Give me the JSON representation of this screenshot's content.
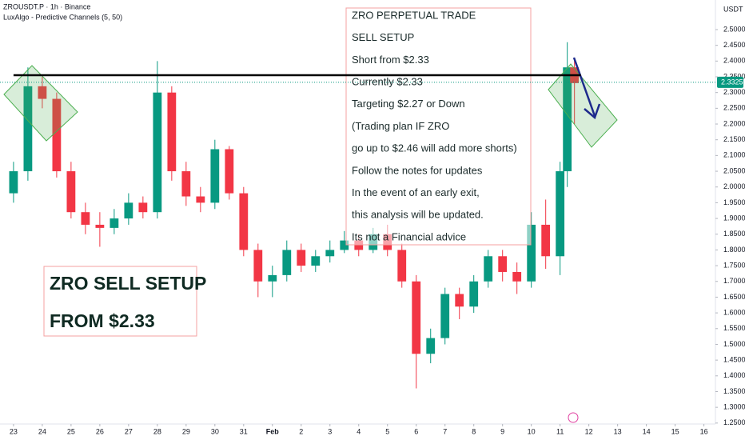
{
  "chart_data": {
    "type": "candlestick",
    "symbol": "ZROUSDT.P · 1h · Binance",
    "indicator": "LuxAlgo - Predictive Channels (5, 50)",
    "currency": "USDT",
    "x": [
      0,
      0.5,
      1,
      1.5,
      2,
      2.5,
      3,
      3.5,
      4,
      4.5,
      5,
      5.5,
      6,
      6.5,
      7,
      7.5,
      8,
      8.5,
      9,
      9.5,
      10,
      10.5,
      11,
      11.5,
      12,
      12.5,
      13,
      13.5,
      14,
      14.5,
      15,
      15.5,
      16,
      16.5,
      17,
      17.5,
      18,
      18.5,
      19,
      19.25,
      19.5
    ],
    "open": [
      1.98,
      2.05,
      2.32,
      2.28,
      2.05,
      1.92,
      1.88,
      1.87,
      1.9,
      1.95,
      1.92,
      2.3,
      2.05,
      1.97,
      1.95,
      2.12,
      1.98,
      1.8,
      1.7,
      1.72,
      1.8,
      1.75,
      1.78,
      1.8,
      1.83,
      1.8,
      1.85,
      1.8,
      1.7,
      1.47,
      1.52,
      1.66,
      1.62,
      1.7,
      1.78,
      1.73,
      1.7,
      1.88,
      1.78,
      2.05,
      2.38
    ],
    "high": [
      2.08,
      2.38,
      2.35,
      2.3,
      2.08,
      1.95,
      1.92,
      1.93,
      1.98,
      1.97,
      2.4,
      2.32,
      2.08,
      2.0,
      2.15,
      2.13,
      2.0,
      1.82,
      1.75,
      1.83,
      1.82,
      1.8,
      1.83,
      1.86,
      1.85,
      1.87,
      1.88,
      1.82,
      1.72,
      1.55,
      1.68,
      1.68,
      1.72,
      1.8,
      1.8,
      1.76,
      1.92,
      1.96,
      2.08,
      2.46,
      2.41
    ],
    "low": [
      1.95,
      2.02,
      2.25,
      2.03,
      1.9,
      1.85,
      1.81,
      1.85,
      1.88,
      1.9,
      1.9,
      2.02,
      1.94,
      1.92,
      1.93,
      1.96,
      1.78,
      1.65,
      1.65,
      1.7,
      1.73,
      1.73,
      1.76,
      1.79,
      1.78,
      1.79,
      1.78,
      1.68,
      1.36,
      1.44,
      1.5,
      1.58,
      1.6,
      1.68,
      1.7,
      1.66,
      1.68,
      1.74,
      1.72,
      2.0,
      2.2
    ],
    "close": [
      2.05,
      2.32,
      2.28,
      2.05,
      1.92,
      1.88,
      1.87,
      1.9,
      1.95,
      1.92,
      2.3,
      2.05,
      1.97,
      1.95,
      2.12,
      1.98,
      1.8,
      1.7,
      1.72,
      1.8,
      1.75,
      1.78,
      1.8,
      1.83,
      1.8,
      1.85,
      1.8,
      1.7,
      1.47,
      1.52,
      1.66,
      1.62,
      1.7,
      1.78,
      1.73,
      1.7,
      1.88,
      1.78,
      2.05,
      2.38,
      2.33
    ],
    "up_color": "#089981",
    "down_color": "#f23645",
    "xlim": [
      -0.47,
      24.4
    ],
    "xticks": [
      {
        "value": 0,
        "label": "23"
      },
      {
        "value": 1,
        "label": "24"
      },
      {
        "value": 2,
        "label": "25"
      },
      {
        "value": 3,
        "label": "26"
      },
      {
        "value": 4,
        "label": "27"
      },
      {
        "value": 5,
        "label": "28"
      },
      {
        "value": 6,
        "label": "29"
      },
      {
        "value": 7,
        "label": "30"
      },
      {
        "value": 8,
        "label": "31"
      },
      {
        "value": 9,
        "label": "Feb"
      },
      {
        "value": 10,
        "label": "2"
      },
      {
        "value": 11,
        "label": "3"
      },
      {
        "value": 12,
        "label": "4"
      },
      {
        "value": 13,
        "label": "5"
      },
      {
        "value": 14,
        "label": "6"
      },
      {
        "value": 15,
        "label": "7"
      },
      {
        "value": 16,
        "label": "8"
      },
      {
        "value": 17,
        "label": "9"
      },
      {
        "value": 18,
        "label": "10"
      },
      {
        "value": 19,
        "label": "11"
      },
      {
        "value": 20,
        "label": "12"
      },
      {
        "value": 21,
        "label": "13"
      },
      {
        "value": 22,
        "label": "14"
      },
      {
        "value": 23,
        "label": "15"
      },
      {
        "value": 24,
        "label": "16"
      }
    ],
    "ylim": [
      1.247,
      2.594
    ],
    "yticks": [
      {
        "value": 1.25,
        "label": "1.2500"
      },
      {
        "value": 1.3,
        "label": "1.3000"
      },
      {
        "value": 1.35,
        "label": "1.3500"
      },
      {
        "value": 1.4,
        "label": "1.4000"
      },
      {
        "value": 1.45,
        "label": "1.4500"
      },
      {
        "value": 1.5,
        "label": "1.5000"
      },
      {
        "value": 1.55,
        "label": "1.5500"
      },
      {
        "value": 1.6,
        "label": "1.6000"
      },
      {
        "value": 1.65,
        "label": "1.6500"
      },
      {
        "value": 1.7,
        "label": "1.7000"
      },
      {
        "value": 1.75,
        "label": "1.7500"
      },
      {
        "value": 1.8,
        "label": "1.8000"
      },
      {
        "value": 1.85,
        "label": "1.8500"
      },
      {
        "value": 1.9,
        "label": "1.9000"
      },
      {
        "value": 1.95,
        "label": "1.9500"
      },
      {
        "value": 2.0,
        "label": "2.0000"
      },
      {
        "value": 2.05,
        "label": "2.0500"
      },
      {
        "value": 2.1,
        "label": "2.1000"
      },
      {
        "value": 2.15,
        "label": "2.1500"
      },
      {
        "value": 2.2,
        "label": "2.2000"
      },
      {
        "value": 2.25,
        "label": "2.2500"
      },
      {
        "value": 2.3,
        "label": "2.3000"
      },
      {
        "value": 2.35,
        "label": "2.3500"
      },
      {
        "value": 2.4,
        "label": "2.4000"
      },
      {
        "value": 2.45,
        "label": "2.4500"
      },
      {
        "value": 2.5,
        "label": "2.5000"
      }
    ],
    "last_price": {
      "value": 2.3325,
      "label": "2.3325"
    },
    "hline": 2.355,
    "notes": [
      "ZRO PERPETUAL TRADE",
      "SELL SETUP",
      "Short from $2.33",
      "Currently $2.33",
      "Targeting $2.27 or Down",
      "(Trading plan IF ZRO",
      "go up to $2.46 will add more shorts)",
      "Follow the notes for updates",
      "In the event of an early exit,",
      "this analysis will be updated.",
      "Its not a Financial advice"
    ],
    "banner": [
      "ZRO SELL SETUP",
      "FROM $2.33"
    ]
  }
}
